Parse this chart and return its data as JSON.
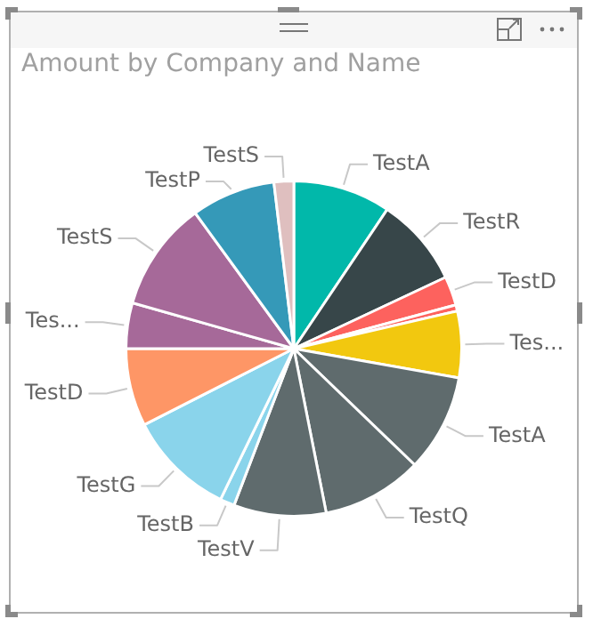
{
  "chart_data": {
    "type": "pie",
    "title": "Amount by Company and Name",
    "categories": [
      "TestA",
      "TestR",
      "TestD",
      null,
      "Tes...",
      "TestA",
      "TestQ",
      "TestV",
      "TestB",
      "TestG",
      "TestD",
      "Tes...",
      "TestS",
      "TestP",
      "TestS"
    ],
    "values": [
      9.4,
      8.6,
      2.8,
      0.6,
      6.4,
      9.4,
      9.7,
      8.9,
      1.4,
      10.3,
      7.5,
      4.4,
      10.6,
      8.1,
      1.9
    ],
    "colors": [
      "#01b8aa",
      "#374649",
      "#fd625e",
      "#fd625e",
      "#f2c80f",
      "#5f6b6d",
      "#5f6b6d",
      "#5f6b6d",
      "#8ad4eb",
      "#8ad4eb",
      "#fe9666",
      "#a66999",
      "#a66999",
      "#3599b8",
      "#dfbfbf"
    ]
  }
}
